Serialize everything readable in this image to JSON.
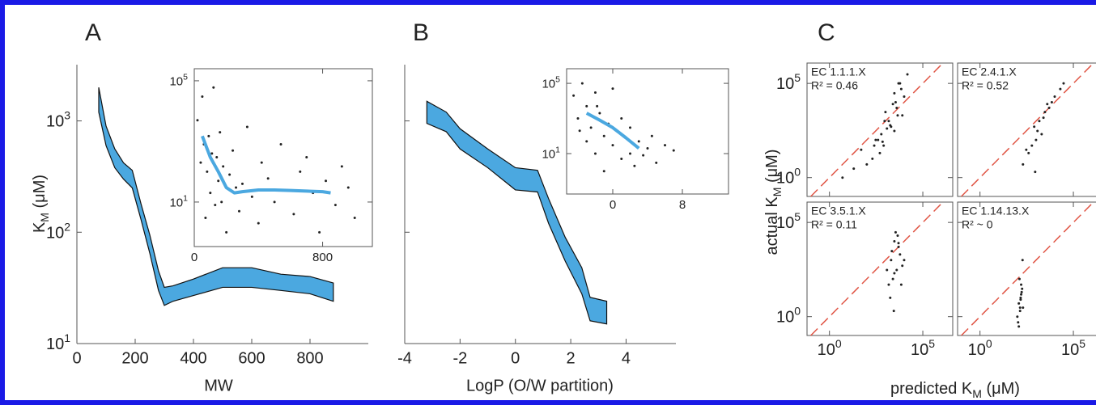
{
  "chart_data": [
    {
      "type": "band",
      "panel": "A",
      "xlabel": "MW",
      "ylabel": {
        "text": "K",
        "sub": "M",
        "unit": " (μM)"
      },
      "color": "#4ba8e0",
      "log_y": true,
      "x": [
        75,
        100,
        130,
        160,
        190,
        220,
        250,
        280,
        300,
        330,
        400,
        500,
        600,
        700,
        800,
        880
      ],
      "lower": [
        1200,
        600,
        380,
        300,
        250,
        130,
        65,
        30,
        22,
        24,
        27,
        32,
        32,
        30,
        28,
        24
      ],
      "upper": [
        2000,
        900,
        560,
        420,
        360,
        180,
        95,
        45,
        32,
        33,
        38,
        48,
        48,
        42,
        40,
        35
      ],
      "xlim": [
        0,
        1000
      ],
      "ylim": [
        10,
        3200
      ],
      "xticks": [
        0,
        200,
        400,
        600,
        800
      ],
      "yticks": [
        {
          "value": 10,
          "label": "10",
          "exponent": "1"
        },
        {
          "value": 100,
          "label": "10",
          "exponent": "2"
        },
        {
          "value": 1000,
          "label": "10",
          "exponent": "3"
        }
      ]
    },
    {
      "type": "scatter",
      "log_y": true,
      "xlim": [
        0,
        1110
      ],
      "ylim": [
        0.34,
        250000
      ],
      "xticks": [
        0,
        800
      ],
      "yticks": [
        {
          "value": 10,
          "label": "10",
          "exponent": "1"
        },
        {
          "value": 100000,
          "label": "10",
          "exponent": "5"
        }
      ],
      "points": {
        "x": [
          20,
          40,
          50,
          60,
          70,
          80,
          90,
          100,
          110,
          120,
          130,
          140,
          150,
          160,
          170,
          180,
          200,
          220,
          240,
          260,
          280,
          300,
          330,
          360,
          400,
          420,
          460,
          500,
          540,
          580,
          620,
          660,
          700,
          740,
          780,
          820,
          880,
          920,
          960,
          1000
        ],
        "y": [
          5000,
          200,
          30000,
          800,
          3,
          100,
          1500,
          20,
          400,
          60000,
          8,
          300,
          50,
          2000,
          10,
          150,
          1,
          80,
          500,
          30,
          5,
          40,
          3000,
          15,
          2,
          200,
          60,
          10,
          800,
          25,
          4,
          100,
          300,
          20,
          1,
          50,
          8,
          150,
          30,
          3
        ]
      },
      "trend": {
        "color": "#4ba8e0",
        "x": [
          50,
          100,
          150,
          200,
          250,
          300,
          400,
          500,
          600,
          700,
          800,
          850
        ],
        "y": [
          1500,
          300,
          100,
          30,
          20,
          22,
          25,
          25,
          24,
          23,
          22,
          20
        ]
      }
    },
    {
      "type": "band",
      "panel": "B",
      "xlabel": "LogP (O/W partition)",
      "color": "#4ba8e0",
      "log_y": true,
      "x": [
        -3.2,
        -2.5,
        -2,
        -1,
        0,
        0.8,
        1.2,
        1.8,
        2.4,
        2.7,
        3.3
      ],
      "lower": [
        950,
        800,
        560,
        380,
        240,
        230,
        120,
        55,
        28,
        16,
        15
      ],
      "upper": [
        1500,
        1200,
        850,
        560,
        380,
        360,
        200,
        90,
        48,
        26,
        24
      ],
      "xlim": [
        -4,
        5.8
      ],
      "ylim": [
        10,
        3200
      ],
      "xticks": [
        -4,
        -2,
        0,
        2,
        4
      ],
      "yticks_unlabeled": [
        10,
        100,
        1000
      ]
    },
    {
      "type": "scatter",
      "log_y": true,
      "xlim": [
        -5.3,
        13.3
      ],
      "ylim": [
        0.05,
        680000
      ],
      "xticks": [
        0,
        8
      ],
      "yticks": [
        {
          "value": 10,
          "label": "10",
          "exponent": "1"
        },
        {
          "value": 100000,
          "label": "10",
          "exponent": "5"
        }
      ],
      "points": {
        "x": [
          -4.5,
          -4,
          -3.5,
          -3,
          -3,
          -2.5,
          -2,
          -2,
          -1.5,
          -1,
          -1,
          -0.5,
          0,
          0,
          0.5,
          1,
          1,
          1.5,
          2,
          2,
          2.5,
          3,
          3.5,
          4,
          4.5,
          5,
          6,
          7,
          -3.8,
          -1.8
        ],
        "y": [
          20000,
          1000,
          100000,
          50,
          5000,
          300,
          30000,
          10,
          2000,
          100,
          1,
          500,
          50000,
          30,
          200,
          5,
          1000,
          80,
          10,
          300,
          2,
          50,
          8,
          20,
          100,
          3,
          30,
          15,
          200,
          5000
        ]
      },
      "trend": {
        "color": "#4ba8e0",
        "x": [
          -3,
          -1.5,
          0,
          1.5,
          3
        ],
        "y": [
          2000,
          800,
          300,
          80,
          20
        ]
      }
    },
    {
      "type": "scatter",
      "panel": "C",
      "log_x": true,
      "log_y": true,
      "diagonal_color": "#e05545",
      "xlabel": {
        "text": "predicted K",
        "sub": "M",
        "unit": " (μM)"
      },
      "ylabel": {
        "text": "actual K",
        "sub": "M",
        "unit": " (μM)"
      },
      "annotation": "EC 1.1.1.X",
      "r2": "R² = 0.46",
      "xlim": [
        0.063,
        4000000
      ],
      "ylim": [
        0.1,
        1200000
      ],
      "xticks_unlabeled": [
        1,
        100000
      ],
      "yticks": [
        {
          "value": 1,
          "label": "10",
          "exponent": "0"
        },
        {
          "value": 100000,
          "label": "10",
          "exponent": "5"
        }
      ],
      "points": {
        "x": [
          300,
          1000,
          3000,
          5000,
          2000,
          800,
          10000,
          4000,
          600,
          200,
          1500,
          7000,
          3000,
          500,
          100,
          50,
          20,
          5,
          2500,
          8000,
          1200,
          400,
          6000,
          900,
          3500,
          15000,
          250,
          1800,
          700,
          4500
        ],
        "y": [
          100,
          3000,
          30000,
          100000,
          500,
          50,
          20000,
          5000,
          200,
          10,
          1000,
          50000,
          300,
          20,
          5,
          30,
          3,
          1,
          8000,
          2000,
          400,
          100,
          100000,
          1000,
          10000,
          300000,
          50,
          600,
          80,
          2000
        ]
      }
    },
    {
      "type": "scatter",
      "log_x": true,
      "log_y": true,
      "diagonal_color": "#e05545",
      "annotation": "EC 2.4.1.X",
      "r2": "R² = 0.52",
      "xlim": [
        0.063,
        4000000
      ],
      "ylim": [
        0.1,
        1200000
      ],
      "xticks_unlabeled": [
        1,
        100000
      ],
      "yticks_unlabeled": [
        1,
        100000
      ],
      "points": {
        "x": [
          300,
          800,
          1500,
          3000,
          5000,
          10000,
          2000,
          600,
          1000,
          4000,
          20000,
          7000,
          400,
          1200,
          2500,
          200,
          30000,
          900
        ],
        "y": [
          30,
          500,
          1000,
          3000,
          5000,
          20000,
          200,
          50,
          100,
          8000,
          50000,
          10000,
          20,
          300,
          1500,
          5,
          100000,
          2
        ]
      }
    },
    {
      "type": "scatter",
      "log_x": true,
      "log_y": true,
      "diagonal_color": "#e05545",
      "annotation": "EC 3.5.1.X",
      "r2": "R² = 0.11",
      "xlim": [
        0.063,
        4000000
      ],
      "ylim": [
        0.1,
        1200000
      ],
      "xticks": [
        {
          "value": 1,
          "label": "10",
          "exponent": "0"
        },
        {
          "value": 100000,
          "label": "10",
          "exponent": "5"
        }
      ],
      "yticks": [
        {
          "value": 1,
          "label": "10",
          "exponent": "0"
        },
        {
          "value": 100000,
          "label": "10",
          "exponent": "5"
        }
      ],
      "points": {
        "x": [
          1500,
          2000,
          3000,
          4000,
          5000,
          2500,
          3500,
          6000,
          8000,
          1800,
          2200,
          4500,
          7000,
          3000,
          5000,
          1200,
          10000,
          2800
        ],
        "y": [
          50,
          1000,
          10000,
          300,
          5000,
          100,
          30000,
          2000,
          500,
          10,
          3000,
          20000,
          50,
          200,
          8000,
          300,
          1000,
          2
        ]
      }
    },
    {
      "type": "scatter",
      "log_x": true,
      "log_y": true,
      "diagonal_color": "#e05545",
      "annotation": "EC 1.14.13.X",
      "r2": "R² ~ 0",
      "xlim": [
        0.063,
        4000000
      ],
      "ylim": [
        0.1,
        1200000
      ],
      "yticks_unlabeled": [
        1,
        100000
      ],
      "xticks": [
        {
          "value": 1,
          "label": "10",
          "exponent": "0"
        },
        {
          "value": 100000,
          "label": "10",
          "exponent": "5"
        }
      ],
      "points": {
        "x": [
          100,
          120,
          150,
          180,
          200,
          130,
          160,
          110,
          140,
          170,
          190,
          150,
          120,
          160,
          140
        ],
        "y": [
          1,
          5,
          10,
          30,
          3,
          100,
          50,
          0.5,
          2,
          20,
          1000,
          8,
          0.3,
          15,
          3
        ]
      }
    }
  ]
}
